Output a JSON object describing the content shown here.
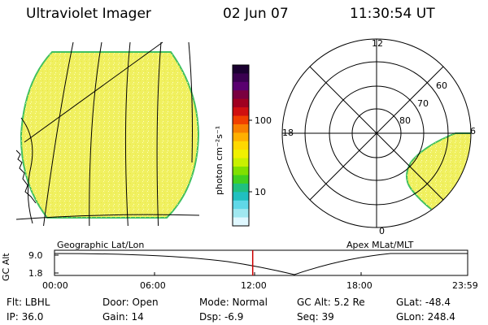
{
  "header": {
    "title": "Ultraviolet Imager",
    "date": "02 Jun 07",
    "time": "11:30:54 UT"
  },
  "colorbar": {
    "unit_label": "photon cm⁻²s⁻¹",
    "ticks": [
      "100",
      "10"
    ],
    "colors": [
      "#1a0030",
      "#3a0050",
      "#5a0070",
      "#7a0040",
      "#a00020",
      "#d01010",
      "#f04000",
      "#f88000",
      "#ffb000",
      "#ffd800",
      "#f0f000",
      "#c8f000",
      "#80e000",
      "#40d020",
      "#20c080",
      "#20c0c0",
      "#60d8e8",
      "#a0e8f0",
      "#e0f8ff"
    ]
  },
  "geographic_panel": {
    "label": "Geographic Lat/Lon",
    "fill_color": "#f0f060",
    "edge_color": "#40c060"
  },
  "polar_plot": {
    "label": "Apex MLat/MLT",
    "mlt_labels": [
      "12",
      "18",
      "6",
      "0"
    ],
    "lat_labels": [
      "60",
      "70",
      "80"
    ]
  },
  "timeline": {
    "y_label": "GC Alt",
    "y_ticks": [
      "9.0",
      "1.8"
    ],
    "x_ticks": [
      "00:00",
      "06:00",
      "12:00",
      "18:00",
      "23:59"
    ],
    "current_time_fraction": 0.4798,
    "marker_color": "#cc0000"
  },
  "info": {
    "filter": "Flt: LBHL",
    "door": "Door: Open",
    "mode": "Mode: Normal",
    "gc_alt": "GC Alt: 5.2 Re",
    "glat": "GLat: -48.4",
    "ip": "IP: 36.0",
    "gain": "Gain: 14",
    "dsp": "Dsp:   -6.9",
    "seq": "Seq: 39",
    "glon": "GLon: 248.4"
  }
}
